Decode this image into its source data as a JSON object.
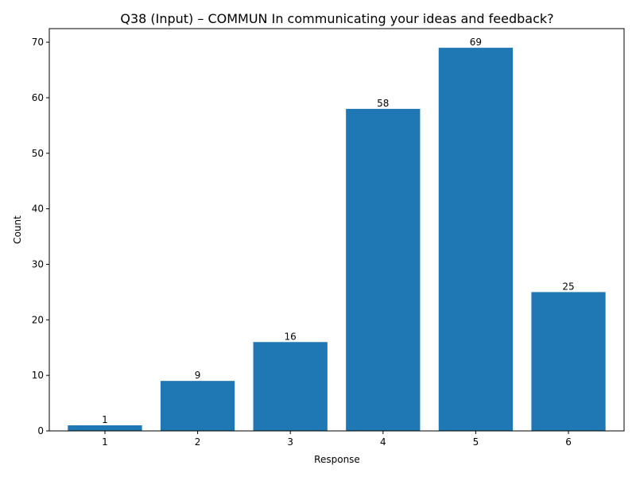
{
  "chart_data": {
    "type": "bar",
    "title": "Q38 (Input) – COMMUN In communicating your ideas and feedback?",
    "xlabel": "Response",
    "ylabel": "Count",
    "categories": [
      "1",
      "2",
      "3",
      "4",
      "5",
      "6"
    ],
    "values": [
      1,
      9,
      16,
      58,
      69,
      25
    ],
    "ylim": [
      0,
      72.45
    ],
    "yticks": [
      0,
      10,
      20,
      30,
      40,
      50,
      60,
      70
    ],
    "grid": false,
    "bar_color": "#1f77b4",
    "show_data_labels": true
  }
}
